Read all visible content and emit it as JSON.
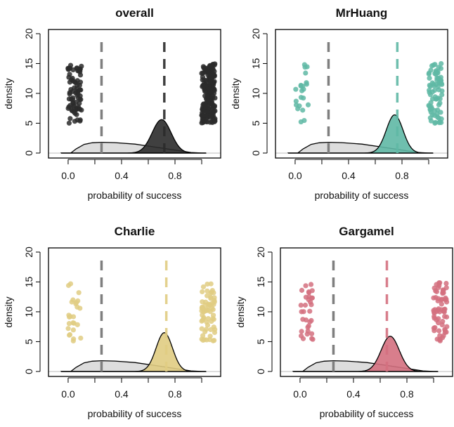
{
  "chart_data": [
    {
      "type": "area",
      "title": "overall",
      "xlabel": "probability of success",
      "ylabel": "density",
      "xlim": [
        -0.147,
        1.142
      ],
      "ylim": [
        -0.83,
        20.7
      ],
      "x_ticks": [
        0,
        0.2,
        0.4,
        0.6,
        0.8,
        1.0
      ],
      "x_tick_labels": [
        "0.0",
        "0.4",
        "0.8"
      ],
      "y_ticks": [
        0,
        5,
        10,
        15,
        20
      ],
      "y_tick_labels": [
        "0",
        "5",
        "10",
        "15",
        "20"
      ],
      "color": "#2b2b2b",
      "prior_line": 0.25,
      "posterior_line": 0.72,
      "posterior": {
        "mean": 0.7,
        "peak_density": 5.6
      },
      "outcomes": {
        "failures": 79,
        "successes": 205
      }
    },
    {
      "type": "area",
      "title": "MrHuang",
      "xlabel": "probability of success",
      "ylabel": "density",
      "xlim": [
        -0.147,
        1.142
      ],
      "ylim": [
        -0.83,
        20.7
      ],
      "x_ticks": [
        0,
        0.2,
        0.4,
        0.6,
        0.8,
        1.0
      ],
      "x_tick_labels": [
        "0.0",
        "0.4",
        "0.8"
      ],
      "y_ticks": [
        0,
        5,
        10,
        15,
        20
      ],
      "y_tick_labels": [
        "0",
        "5",
        "10",
        "15",
        "20"
      ],
      "color": "#5fb8a5",
      "prior_line": 0.25,
      "posterior_line": 0.765,
      "posterior": {
        "mean": 0.745,
        "peak_density": 6.4
      },
      "outcomes": {
        "failures": 22,
        "successes": 75
      }
    },
    {
      "type": "area",
      "title": "Charlie",
      "xlabel": "probability of success",
      "ylabel": "density",
      "xlim": [
        -0.147,
        1.142
      ],
      "ylim": [
        -0.83,
        20.7
      ],
      "x_ticks": [
        0,
        0.2,
        0.4,
        0.6,
        0.8,
        1.0
      ],
      "x_tick_labels": [
        "0.0",
        "0.4",
        "0.8"
      ],
      "y_ticks": [
        0,
        5,
        10,
        15,
        20
      ],
      "y_tick_labels": [
        "0",
        "5",
        "10",
        "15",
        "20"
      ],
      "color": "#e0cc82",
      "prior_line": 0.25,
      "posterior_line": 0.735,
      "posterior": {
        "mean": 0.72,
        "peak_density": 6.5
      },
      "outcomes": {
        "failures": 25,
        "successes": 65
      }
    },
    {
      "type": "area",
      "title": "Gargamel",
      "xlabel": "probability of success",
      "ylabel": "density",
      "xlim": [
        -0.147,
        1.142
      ],
      "ylim": [
        -0.83,
        20.7
      ],
      "x_ticks": [
        0,
        0.2,
        0.4,
        0.6,
        0.8,
        1.0
      ],
      "x_tick_labels": [
        "0.0",
        "0.4",
        "0.8"
      ],
      "y_ticks": [
        0,
        5,
        10,
        15,
        20
      ],
      "y_tick_labels": [
        "0",
        "5",
        "10",
        "15",
        "20"
      ],
      "color": "#d4707f",
      "prior_line": 0.25,
      "posterior_line": 0.65,
      "posterior": {
        "mean": 0.675,
        "peak_density": 5.9
      },
      "outcomes": {
        "failures": 32,
        "successes": 65
      }
    }
  ],
  "prior": {
    "color": "#d9d9d9",
    "line_color": "#7f7f7f",
    "x": [
      -0.05,
      0.02,
      0.06,
      0.12,
      0.18,
      0.25,
      0.35,
      0.5,
      0.65,
      0.8,
      0.92,
      1.0,
      1.03
    ],
    "y": [
      0,
      0,
      0.7,
      1.45,
      1.72,
      1.8,
      1.75,
      1.5,
      1.0,
      0.5,
      0.1,
      0,
      0
    ]
  }
}
